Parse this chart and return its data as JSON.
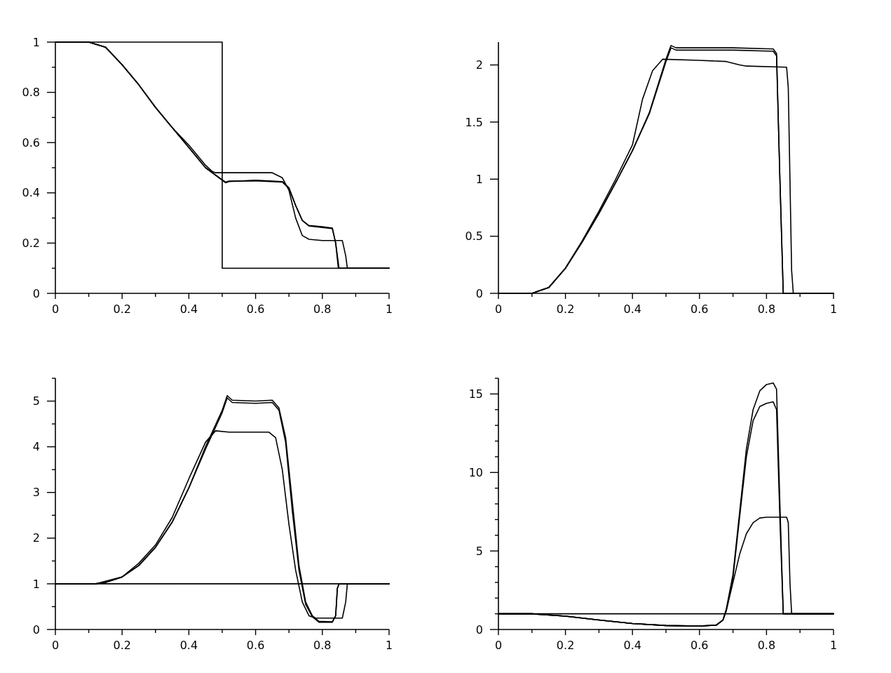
{
  "chart_data": [
    {
      "type": "line",
      "xlim": [
        0,
        1
      ],
      "ylim": [
        0,
        1
      ],
      "grid": false,
      "marker": "none",
      "line_style": "solid",
      "xticks": [
        0,
        {
          "value": 0.1,
          "label": null
        },
        0.2,
        {
          "value": 0.3,
          "label": null
        },
        0.4,
        {
          "value": 0.5,
          "label": null
        },
        0.6,
        {
          "value": 0.7,
          "label": null
        },
        0.8,
        {
          "value": 0.9,
          "label": null
        },
        1
      ],
      "yticks": [
        0,
        {
          "value": 0.1,
          "label": null
        },
        0.2,
        {
          "value": 0.3,
          "label": null
        },
        0.4,
        {
          "value": 0.5,
          "label": null
        },
        0.6,
        {
          "value": 0.7,
          "label": null
        },
        0.8,
        {
          "value": 0.9,
          "label": null
        },
        1
      ],
      "series": [
        {
          "color": "#000000",
          "x": [
            0,
            0.5,
            0.5,
            1
          ],
          "values": [
            1,
            1,
            0.1,
            0.1
          ]
        },
        {
          "color": "#000000",
          "x": [
            0,
            0.1,
            0.15,
            0.2,
            0.25,
            0.3,
            0.35,
            0.4,
            0.45,
            0.47,
            0.48,
            0.55,
            0.65,
            0.68,
            0.7,
            0.72,
            0.74,
            0.76,
            0.8,
            0.86,
            0.87,
            0.875,
            1
          ],
          "values": [
            1,
            1,
            0.98,
            0.91,
            0.83,
            0.74,
            0.66,
            0.59,
            0.51,
            0.485,
            0.48,
            0.48,
            0.48,
            0.46,
            0.41,
            0.3,
            0.23,
            0.215,
            0.21,
            0.21,
            0.15,
            0.1,
            0.1
          ]
        },
        {
          "color": "#000000",
          "x": [
            0,
            0.1,
            0.15,
            0.2,
            0.25,
            0.3,
            0.35,
            0.4,
            0.45,
            0.5,
            0.51,
            0.52,
            0.6,
            0.68,
            0.7,
            0.72,
            0.74,
            0.76,
            0.8,
            0.83,
            0.84,
            0.85,
            1
          ],
          "values": [
            1,
            1,
            0.98,
            0.91,
            0.83,
            0.74,
            0.66,
            0.58,
            0.5,
            0.45,
            0.44,
            0.445,
            0.45,
            0.445,
            0.42,
            0.35,
            0.29,
            0.27,
            0.265,
            0.26,
            0.2,
            0.1,
            0.1
          ]
        },
        {
          "color": "#000000",
          "x": [
            0,
            0.1,
            0.15,
            0.2,
            0.25,
            0.3,
            0.35,
            0.4,
            0.45,
            0.5,
            0.51,
            0.52,
            0.6,
            0.68,
            0.7,
            0.72,
            0.74,
            0.76,
            0.8,
            0.83,
            0.84,
            0.848,
            1
          ],
          "values": [
            1,
            1,
            0.98,
            0.91,
            0.83,
            0.74,
            0.66,
            0.58,
            0.5,
            0.452,
            0.443,
            0.447,
            0.448,
            0.443,
            0.418,
            0.35,
            0.29,
            0.268,
            0.262,
            0.258,
            0.2,
            0.1,
            0.1
          ]
        }
      ]
    },
    {
      "type": "line",
      "xlim": [
        0,
        1
      ],
      "ylim": [
        0,
        2.2
      ],
      "grid": false,
      "marker": "none",
      "line_style": "solid",
      "xticks": [
        0,
        {
          "value": 0.1,
          "label": null
        },
        0.2,
        {
          "value": 0.3,
          "label": null
        },
        0.4,
        {
          "value": 0.5,
          "label": null
        },
        0.6,
        {
          "value": 0.7,
          "label": null
        },
        0.8,
        {
          "value": 0.9,
          "label": null
        },
        1
      ],
      "yticks": [
        0,
        0.5,
        1,
        1.5,
        2
      ],
      "series": [
        {
          "color": "#000000",
          "x": [
            0,
            0.1,
            0.15,
            0.2,
            0.25,
            0.3,
            0.35,
            0.4,
            0.43,
            0.46,
            0.49,
            0.6,
            0.68,
            0.72,
            0.74,
            0.86,
            0.865,
            0.875,
            0.88,
            1
          ],
          "values": [
            0,
            0,
            0.05,
            0.22,
            0.46,
            0.72,
            1.0,
            1.3,
            1.7,
            1.95,
            2.05,
            2.04,
            2.03,
            2.0,
            1.99,
            1.98,
            1.8,
            0.2,
            0,
            0
          ]
        },
        {
          "color": "#000000",
          "x": [
            0,
            0.1,
            0.15,
            0.2,
            0.25,
            0.3,
            0.35,
            0.4,
            0.45,
            0.5,
            0.515,
            0.53,
            0.7,
            0.82,
            0.83,
            0.84,
            0.85,
            1
          ],
          "values": [
            0,
            0,
            0.05,
            0.22,
            0.45,
            0.7,
            0.97,
            1.25,
            1.58,
            2.05,
            2.17,
            2.15,
            2.15,
            2.14,
            2.1,
            1.0,
            0,
            0
          ]
        },
        {
          "color": "#000000",
          "x": [
            0,
            0.1,
            0.15,
            0.2,
            0.25,
            0.3,
            0.35,
            0.4,
            0.45,
            0.5,
            0.515,
            0.53,
            0.7,
            0.82,
            0.83,
            0.84,
            0.85,
            1
          ],
          "values": [
            0,
            0,
            0.05,
            0.22,
            0.45,
            0.7,
            0.97,
            1.25,
            1.57,
            2.03,
            2.15,
            2.13,
            2.13,
            2.12,
            2.08,
            1.0,
            0,
            0
          ]
        }
      ]
    },
    {
      "type": "line",
      "xlim": [
        0,
        1
      ],
      "ylim": [
        0,
        5.5
      ],
      "grid": false,
      "marker": "none",
      "line_style": "solid",
      "xticks": [
        0,
        {
          "value": 0.1,
          "label": null
        },
        0.2,
        {
          "value": 0.3,
          "label": null
        },
        0.4,
        {
          "value": 0.5,
          "label": null
        },
        0.6,
        {
          "value": 0.7,
          "label": null
        },
        0.8,
        {
          "value": 0.9,
          "label": null
        },
        1
      ],
      "yticks": [
        0,
        {
          "value": 0.5,
          "label": null
        },
        1,
        {
          "value": 1.5,
          "label": null
        },
        2,
        {
          "value": 2.5,
          "label": null
        },
        3,
        {
          "value": 3.5,
          "label": null
        },
        4,
        {
          "value": 4.5,
          "label": null
        },
        5,
        {
          "value": 5.5,
          "label": null
        }
      ],
      "series": [
        {
          "color": "#000000",
          "x": [
            0,
            1
          ],
          "values": [
            1,
            1
          ]
        },
        {
          "color": "#000000",
          "x": [
            0,
            0.12,
            0.2,
            0.25,
            0.3,
            0.35,
            0.4,
            0.45,
            0.48,
            0.52,
            0.64,
            0.66,
            0.68,
            0.7,
            0.72,
            0.74,
            0.76,
            0.78,
            0.86,
            0.87,
            0.875,
            1
          ],
          "values": [
            1,
            1,
            1.15,
            1.45,
            1.85,
            2.45,
            3.3,
            4.1,
            4.35,
            4.32,
            4.32,
            4.2,
            3.5,
            2.3,
            1.3,
            0.6,
            0.3,
            0.25,
            0.25,
            0.6,
            1,
            1
          ]
        },
        {
          "color": "#000000",
          "x": [
            0,
            0.12,
            0.15,
            0.2,
            0.25,
            0.3,
            0.35,
            0.4,
            0.45,
            0.5,
            0.515,
            0.53,
            0.6,
            0.65,
            0.67,
            0.69,
            0.71,
            0.73,
            0.75,
            0.77,
            0.79,
            0.83,
            0.84,
            0.845,
            0.85,
            1
          ],
          "values": [
            1,
            1,
            1.03,
            1.15,
            1.4,
            1.8,
            2.35,
            3.1,
            4.0,
            4.8,
            5.12,
            5.02,
            5.0,
            5.02,
            4.85,
            4.2,
            2.8,
            1.4,
            0.6,
            0.3,
            0.18,
            0.17,
            0.3,
            0.9,
            1,
            1
          ]
        },
        {
          "color": "#000000",
          "x": [
            0,
            0.12,
            0.15,
            0.2,
            0.25,
            0.3,
            0.35,
            0.4,
            0.45,
            0.5,
            0.515,
            0.53,
            0.6,
            0.65,
            0.67,
            0.69,
            0.71,
            0.73,
            0.75,
            0.77,
            0.79,
            0.83,
            0.84,
            0.845,
            0.85,
            1
          ],
          "values": [
            1,
            1,
            1.03,
            1.15,
            1.4,
            1.8,
            2.35,
            3.1,
            3.95,
            4.75,
            5.07,
            4.97,
            4.95,
            4.97,
            4.8,
            4.1,
            2.6,
            1.3,
            0.55,
            0.28,
            0.16,
            0.16,
            0.3,
            0.9,
            1,
            1
          ]
        }
      ]
    },
    {
      "type": "line",
      "xlim": [
        0,
        1
      ],
      "ylim": [
        0,
        16
      ],
      "grid": false,
      "marker": "none",
      "line_style": "solid",
      "xticks": [
        0,
        {
          "value": 0.1,
          "label": null
        },
        0.2,
        {
          "value": 0.3,
          "label": null
        },
        0.4,
        {
          "value": 0.5,
          "label": null
        },
        0.6,
        {
          "value": 0.7,
          "label": null
        },
        0.8,
        {
          "value": 0.9,
          "label": null
        },
        1
      ],
      "yticks": [
        0,
        {
          "value": 1,
          "label": null
        },
        {
          "value": 2,
          "label": null
        },
        {
          "value": 3,
          "label": null
        },
        {
          "value": 4,
          "label": null
        },
        5,
        {
          "value": 6,
          "label": null
        },
        {
          "value": 7,
          "label": null
        },
        {
          "value": 8,
          "label": null
        },
        {
          "value": 9,
          "label": null
        },
        10,
        {
          "value": 11,
          "label": null
        },
        {
          "value": 12,
          "label": null
        },
        {
          "value": 13,
          "label": null
        },
        {
          "value": 14,
          "label": null
        },
        15,
        {
          "value": 16,
          "label": null
        }
      ],
      "series": [
        {
          "color": "#000000",
          "x": [
            0,
            1
          ],
          "values": [
            1,
            1
          ]
        },
        {
          "color": "#000000",
          "x": [
            0,
            0.1,
            0.2,
            0.3,
            0.4,
            0.5,
            0.6,
            0.65,
            0.67,
            0.68,
            0.7,
            0.72,
            0.74,
            0.76,
            0.78,
            0.8,
            0.86,
            0.865,
            0.87,
            0.875,
            1
          ],
          "values": [
            1,
            1,
            0.85,
            0.6,
            0.38,
            0.25,
            0.22,
            0.28,
            0.6,
            1.2,
            3,
            4.8,
            6.1,
            6.8,
            7.1,
            7.15,
            7.15,
            6.8,
            3,
            1,
            1
          ]
        },
        {
          "color": "#000000",
          "x": [
            0,
            0.1,
            0.2,
            0.3,
            0.4,
            0.5,
            0.6,
            0.65,
            0.67,
            0.68,
            0.7,
            0.72,
            0.74,
            0.76,
            0.78,
            0.8,
            0.82,
            0.83,
            0.84,
            0.85,
            1
          ],
          "values": [
            1,
            1,
            0.85,
            0.6,
            0.38,
            0.25,
            0.22,
            0.28,
            0.6,
            1.3,
            3.5,
            7.5,
            11.5,
            14.0,
            15.2,
            15.6,
            15.7,
            15.3,
            8,
            1,
            1
          ]
        },
        {
          "color": "#000000",
          "x": [
            0,
            0.1,
            0.2,
            0.3,
            0.4,
            0.5,
            0.6,
            0.65,
            0.67,
            0.68,
            0.7,
            0.72,
            0.74,
            0.76,
            0.78,
            0.8,
            0.82,
            0.83,
            0.84,
            0.85,
            1
          ],
          "values": [
            1,
            1,
            0.85,
            0.6,
            0.38,
            0.25,
            0.22,
            0.28,
            0.6,
            1.2,
            3.3,
            7.2,
            11,
            13.3,
            14.2,
            14.4,
            14.5,
            14,
            7,
            1,
            1
          ]
        }
      ]
    }
  ]
}
